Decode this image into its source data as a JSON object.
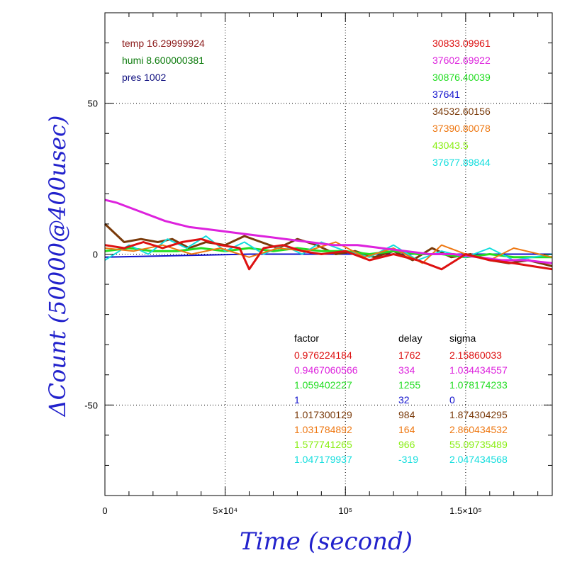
{
  "chart_data": {
    "type": "line",
    "title": "",
    "xlabel": "Time (second)",
    "ylabel": "ΔCount (50000@400usec)",
    "xlim": [
      0,
      186000
    ],
    "ylim": [
      -80,
      80
    ],
    "x_ticks": [
      {
        "value": 0,
        "label": "0"
      },
      {
        "value": 50000,
        "label": "5×10⁴"
      },
      {
        "value": 100000,
        "label": "10⁵"
      },
      {
        "value": 150000,
        "label": "1.5×10⁵"
      }
    ],
    "y_ticks": [
      {
        "value": 50,
        "label": "50"
      },
      {
        "value": 0,
        "label": "0"
      },
      {
        "value": -50,
        "label": "-50"
      }
    ],
    "grid": true,
    "colors": {
      "axis_title": "#2222cc"
    },
    "env": [
      {
        "text": "temp 16.29999924",
        "color": "#8b1a1a"
      },
      {
        "text": "humi 8.600000381",
        "color": "#0a7a0a"
      },
      {
        "text": "pres 1002",
        "color": "#101080"
      }
    ],
    "legend": {
      "placement": "top-right",
      "entries": [
        {
          "label": "30833.09961",
          "color": "#dd1111"
        },
        {
          "label": "37602.69922",
          "color": "#dd22dd"
        },
        {
          "label": "30876.40039",
          "color": "#22dd22"
        },
        {
          "label": "37641",
          "color": "#1111cc"
        },
        {
          "label": "34532.60156",
          "color": "#7a3a0a"
        },
        {
          "label": "37390.80078",
          "color": "#ee7711"
        },
        {
          "label": "43043.5",
          "color": "#88ee11"
        },
        {
          "label": "37677.89844",
          "color": "#11dddd"
        }
      ]
    },
    "table": {
      "headers": [
        "factor",
        "delay",
        "sigma"
      ],
      "rows": [
        {
          "color": "#dd1111",
          "factor": "0.976224184",
          "delay": "1762",
          "sigma": "2.15860033"
        },
        {
          "color": "#dd22dd",
          "factor": "0.9467060566",
          "delay": "334",
          "sigma": "1.034434557"
        },
        {
          "color": "#22dd22",
          "factor": "1.059402227",
          "delay": "1255",
          "sigma": "1.078174233"
        },
        {
          "color": "#1111cc",
          "factor": "1",
          "delay": "32",
          "sigma": "0"
        },
        {
          "color": "#7a3a0a",
          "factor": "1.017300129",
          "delay": "984",
          "sigma": "1.874304295"
        },
        {
          "color": "#ee7711",
          "factor": "1.031784892",
          "delay": "164",
          "sigma": "2.860434532"
        },
        {
          "color": "#88ee11",
          "factor": "1.577741265",
          "delay": "966",
          "sigma": "55.09735489"
        },
        {
          "color": "#11dddd",
          "factor": "1.047179937",
          "delay": "-319",
          "sigma": "2.047434568"
        }
      ]
    },
    "series": [
      {
        "color": "#1111cc",
        "x": [
          0,
          60000,
          120000,
          186000
        ],
        "y": [
          -1,
          0,
          0,
          0
        ]
      },
      {
        "color": "#7a3a0a",
        "x": [
          0,
          8000,
          15000,
          22000,
          28000,
          35000,
          42000,
          50000,
          58000,
          65000,
          72000,
          80000,
          88000,
          96000,
          104000,
          112000,
          120000,
          128000,
          136000,
          144000,
          152000,
          160000,
          168000,
          176000,
          186000
        ],
        "y": [
          10,
          4,
          5,
          4,
          5,
          2,
          4,
          3,
          6,
          4,
          2,
          5,
          3,
          0,
          1,
          -1,
          1,
          -2,
          2,
          -1,
          0,
          -2,
          -3,
          -2,
          -4
        ]
      },
      {
        "color": "#22dd22",
        "x": [
          0,
          10000,
          20000,
          30000,
          40000,
          50000,
          60000,
          70000,
          80000,
          90000,
          100000,
          110000,
          120000,
          130000,
          140000,
          150000,
          160000,
          170000,
          186000
        ],
        "y": [
          1,
          2,
          1,
          1,
          2,
          1,
          2,
          1,
          2,
          1,
          1,
          0,
          1,
          0,
          0,
          -1,
          0,
          -1,
          -1
        ]
      },
      {
        "color": "#11dddd",
        "x": [
          0,
          10000,
          18000,
          26000,
          34000,
          42000,
          50000,
          58000,
          66000,
          74000,
          82000,
          90000,
          100000,
          110000,
          120000,
          130000,
          140000,
          150000,
          160000,
          170000,
          186000
        ],
        "y": [
          -2,
          3,
          0,
          5,
          2,
          6,
          1,
          4,
          0,
          3,
          0,
          4,
          1,
          -1,
          3,
          -2,
          1,
          -1,
          2,
          -2,
          0
        ]
      },
      {
        "color": "#ee7711",
        "x": [
          0,
          12000,
          24000,
          36000,
          48000,
          60000,
          72000,
          84000,
          96000,
          108000,
          120000,
          132000,
          140000,
          150000,
          160000,
          170000,
          186000
        ],
        "y": [
          2,
          1,
          3,
          0,
          2,
          -1,
          2,
          1,
          4,
          -1,
          2,
          -3,
          3,
          0,
          -2,
          2,
          -1
        ]
      },
      {
        "color": "#dd22dd",
        "x": [
          0,
          5000,
          15000,
          25000,
          35000,
          45000,
          55000,
          65000,
          75000,
          85000,
          95000,
          105000,
          115000,
          125000,
          135000,
          145000,
          155000,
          165000,
          175000,
          186000
        ],
        "y": [
          18,
          17,
          14,
          11,
          9,
          8,
          7,
          6,
          5,
          4,
          3,
          3,
          2,
          1,
          0,
          0,
          -1,
          -2,
          -2,
          -3
        ]
      },
      {
        "color": "#dd1111",
        "x": [
          0,
          8000,
          16000,
          24000,
          32000,
          40000,
          48000,
          56000,
          60000,
          66000,
          74000,
          82000,
          90000,
          100000,
          110000,
          120000,
          130000,
          140000,
          150000,
          160000,
          170000,
          186000
        ],
        "y": [
          3,
          2,
          4,
          2,
          4,
          5,
          3,
          2,
          -5,
          2,
          3,
          1,
          0,
          1,
          -2,
          0,
          -2,
          -5,
          0,
          -2,
          -3,
          -5
        ]
      }
    ]
  }
}
